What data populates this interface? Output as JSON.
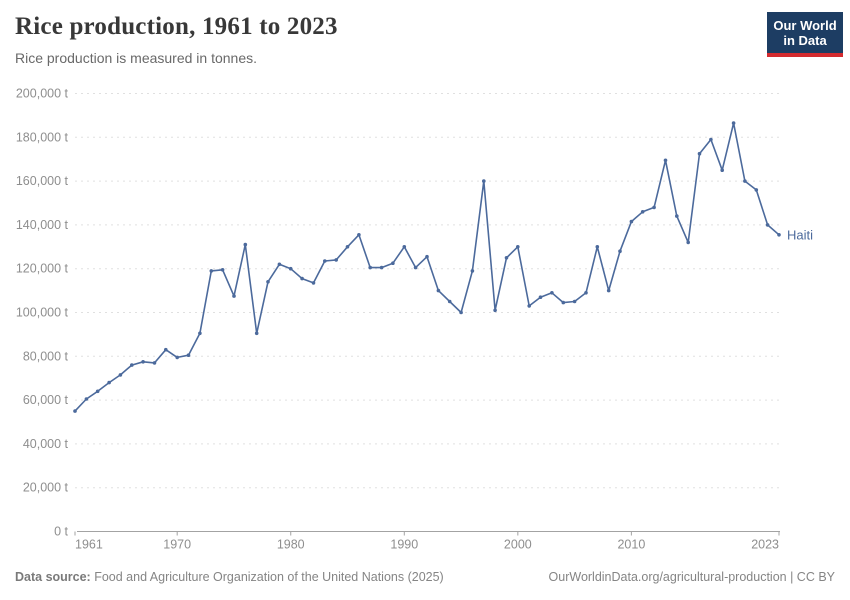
{
  "header": {
    "title": "Rice production, 1961 to 2023",
    "subtitle": "Rice production is measured in tonnes.",
    "logo": {
      "line1": "Our World",
      "line2": "in Data"
    }
  },
  "footer": {
    "source_label": "Data source:",
    "source_text": " Food and Agriculture Organization of the United Nations (2025)",
    "credit_text": "OurWorldinData.org/agricultural-production | CC BY"
  },
  "colors": {
    "line": "#4c6a9c",
    "grid": "#e0e0e0",
    "axis": "#a3a3a3",
    "tick_label": "#8e8e8e",
    "logo_navy": "#1d3d63",
    "logo_red": "#d42b2f"
  },
  "chart_data": {
    "type": "line",
    "title": "Rice production, 1961 to 2023",
    "subtitle": "Rice production is measured in tonnes.",
    "unit": "t",
    "xlabel": "",
    "ylabel": "",
    "xlim": [
      1961,
      2023
    ],
    "ylim": [
      0,
      200000
    ],
    "grid": "horizontal-dashed",
    "legend_position": "end-of-line",
    "end_label": "Haiti",
    "yticks": [
      {
        "value": 0,
        "label": "0 t"
      },
      {
        "value": 20000,
        "label": "20,000 t"
      },
      {
        "value": 40000,
        "label": "40,000 t"
      },
      {
        "value": 60000,
        "label": "60,000 t"
      },
      {
        "value": 80000,
        "label": "80,000 t"
      },
      {
        "value": 100000,
        "label": "100,000 t"
      },
      {
        "value": 120000,
        "label": "120,000 t"
      },
      {
        "value": 140000,
        "label": "140,000 t"
      },
      {
        "value": 160000,
        "label": "160,000 t"
      },
      {
        "value": 180000,
        "label": "180,000 t"
      },
      {
        "value": 200000,
        "label": "200,000 t"
      }
    ],
    "xticks": [
      {
        "year": 1961,
        "label": "1961",
        "anchor": "start"
      },
      {
        "year": 1970,
        "label": "1970",
        "anchor": "middle"
      },
      {
        "year": 1980,
        "label": "1980",
        "anchor": "middle"
      },
      {
        "year": 1990,
        "label": "1990",
        "anchor": "middle"
      },
      {
        "year": 2000,
        "label": "2000",
        "anchor": "middle"
      },
      {
        "year": 2010,
        "label": "2010",
        "anchor": "middle"
      },
      {
        "year": 2023,
        "label": "2023",
        "anchor": "end"
      }
    ],
    "x": [
      1961,
      1962,
      1963,
      1964,
      1965,
      1966,
      1967,
      1968,
      1969,
      1970,
      1971,
      1972,
      1973,
      1974,
      1975,
      1976,
      1977,
      1978,
      1979,
      1980,
      1981,
      1982,
      1983,
      1984,
      1985,
      1986,
      1987,
      1988,
      1989,
      1990,
      1991,
      1992,
      1993,
      1994,
      1995,
      1996,
      1997,
      1998,
      1999,
      2000,
      2001,
      2002,
      2003,
      2004,
      2005,
      2006,
      2007,
      2008,
      2009,
      2010,
      2011,
      2012,
      2013,
      2014,
      2015,
      2016,
      2017,
      2018,
      2019,
      2020,
      2021,
      2022,
      2023
    ],
    "series": [
      {
        "name": "Haiti",
        "color": "#4c6a9c",
        "values": [
          55000,
          60500,
          64000,
          68000,
          71500,
          76000,
          77500,
          77000,
          83000,
          79500,
          80500,
          90500,
          119000,
          119500,
          107500,
          131000,
          90500,
          114000,
          122000,
          120000,
          115500,
          113500,
          123500,
          124000,
          130000,
          135500,
          120500,
          120500,
          122500,
          130000,
          120500,
          125500,
          110000,
          105000,
          100000,
          119000,
          160000,
          101000,
          125000,
          130000,
          103000,
          107000,
          109000,
          104500,
          105000,
          109000,
          130000,
          110000,
          128000,
          141500,
          146000,
          148000,
          169500,
          144000,
          132000,
          172500,
          179000,
          165000,
          186500,
          160000,
          156000,
          140000,
          135500
        ]
      }
    ]
  }
}
